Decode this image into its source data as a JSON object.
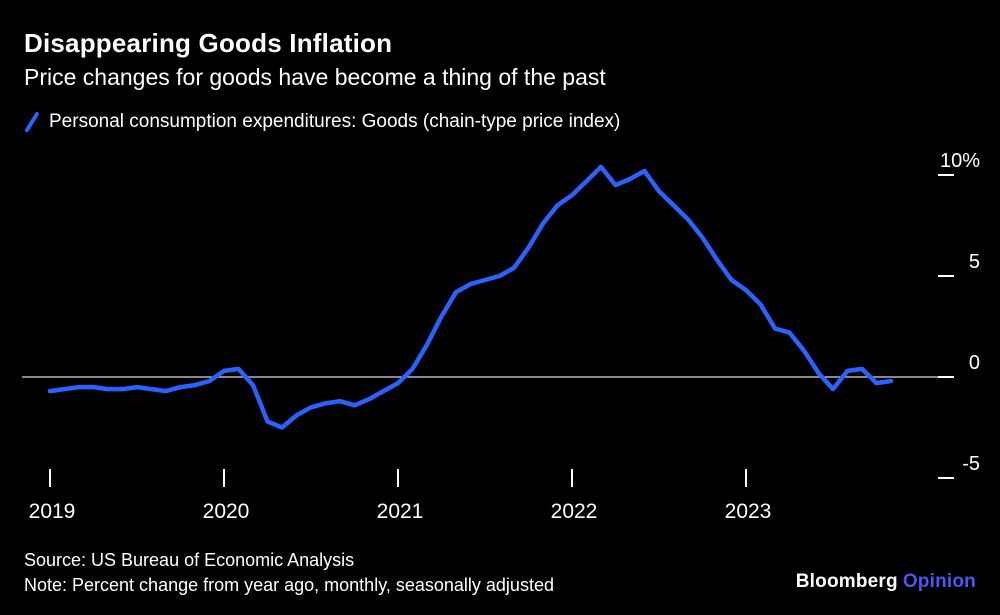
{
  "header": {
    "title": "Disappearing Goods Inflation",
    "subtitle": "Price changes for goods have become a thing of the past"
  },
  "legend": {
    "label": "Personal consumption expenditures: Goods (chain-type price index)"
  },
  "chart_data": {
    "type": "line",
    "title": "Disappearing Goods Inflation",
    "subtitle": "Price changes for goods have become a thing of the past",
    "unit": "percent change from year ago",
    "background": "#000000",
    "grid": false,
    "zero_line": true,
    "zero_line_color": "#d9d9d9",
    "legend_position": "top-left",
    "xlim": [
      2019.0,
      2024.0
    ],
    "ylim": [
      -5.5,
      11
    ],
    "x_ticks": [
      {
        "value": 2019,
        "label": "2019"
      },
      {
        "value": 2020,
        "label": "2020"
      },
      {
        "value": 2021,
        "label": "2021"
      },
      {
        "value": 2022,
        "label": "2022"
      },
      {
        "value": 2023,
        "label": "2023"
      }
    ],
    "y_ticks": [
      {
        "value": 10,
        "label": "10%"
      },
      {
        "value": 5,
        "label": "5"
      },
      {
        "value": 0,
        "label": "0"
      },
      {
        "value": -5,
        "label": "-5"
      }
    ],
    "series": [
      {
        "name": "Personal consumption expenditures: Goods (chain-type price index)",
        "color": "#2962FF",
        "start": "2019-01",
        "frequency": "monthly",
        "values": [
          -0.7,
          -0.6,
          -0.5,
          -0.5,
          -0.6,
          -0.6,
          -0.5,
          -0.6,
          -0.7,
          -0.5,
          -0.4,
          -0.2,
          0.3,
          0.4,
          -0.4,
          -2.2,
          -2.5,
          -1.9,
          -1.5,
          -1.3,
          -1.2,
          -1.4,
          -1.1,
          -0.7,
          -0.3,
          0.4,
          1.6,
          3.0,
          4.2,
          4.6,
          4.8,
          5.0,
          5.4,
          6.4,
          7.6,
          8.5,
          9.0,
          9.7,
          10.4,
          9.5,
          9.8,
          10.2,
          9.2,
          8.5,
          7.8,
          6.9,
          5.8,
          4.8,
          4.3,
          3.6,
          2.4,
          2.2,
          1.3,
          0.2,
          -0.6,
          0.3,
          0.4,
          -0.3,
          -0.2
        ]
      }
    ]
  },
  "footer": {
    "source": "Source: US Bureau of Economic Analysis",
    "note": "Note: Percent change from year ago, monthly, seasonally adjusted"
  },
  "branding": {
    "name": "Bloomberg",
    "suffix": "Opinion",
    "suffix_color": "#4E55F0"
  }
}
